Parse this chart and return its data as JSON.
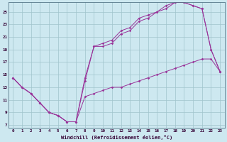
{
  "xlabel": "Windchill (Refroidissement éolien,°C)",
  "bg_color": "#cde8f0",
  "grid_color": "#a0c4cc",
  "line_color": "#993399",
  "xlim": [
    -0.5,
    23.5
  ],
  "ylim": [
    6.5,
    26.5
  ],
  "xticks": [
    0,
    1,
    2,
    3,
    4,
    5,
    6,
    7,
    8,
    9,
    10,
    11,
    12,
    13,
    14,
    15,
    16,
    17,
    18,
    19,
    20,
    21,
    22,
    23
  ],
  "yticks": [
    7,
    9,
    11,
    13,
    15,
    17,
    19,
    21,
    23,
    25
  ],
  "line1_x": [
    0,
    1,
    2,
    3,
    4,
    5,
    6,
    7,
    8,
    9,
    10,
    11,
    12,
    13,
    14,
    15,
    16,
    17,
    18,
    19,
    20,
    21,
    22,
    23
  ],
  "line1_y": [
    14.5,
    13.0,
    12.0,
    10.5,
    9.0,
    8.5,
    7.5,
    7.5,
    11.5,
    12.0,
    12.5,
    13.0,
    13.0,
    13.5,
    14.0,
    14.5,
    15.0,
    15.5,
    16.0,
    16.5,
    17.0,
    17.5,
    17.5,
    15.5
  ],
  "line2_x": [
    0,
    1,
    2,
    3,
    4,
    5,
    6,
    7,
    8,
    9,
    10,
    11,
    12,
    13,
    14,
    15,
    16,
    17,
    18,
    19,
    20,
    21,
    22,
    23
  ],
  "line2_y": [
    14.5,
    13.0,
    12.0,
    10.5,
    9.0,
    8.5,
    7.5,
    7.5,
    14.0,
    19.5,
    20.0,
    20.5,
    22.0,
    22.5,
    24.0,
    24.5,
    25.0,
    26.0,
    26.5,
    26.5,
    26.0,
    25.5,
    19.0,
    15.5
  ],
  "line3_x": [
    0,
    1,
    2,
    3,
    4,
    5,
    6,
    7,
    8,
    9,
    10,
    11,
    12,
    13,
    14,
    15,
    16,
    17,
    18,
    19,
    20,
    21,
    22,
    23
  ],
  "line3_y": [
    14.5,
    13.0,
    12.0,
    10.5,
    9.0,
    8.5,
    7.5,
    7.5,
    14.5,
    19.5,
    19.5,
    20.0,
    21.5,
    22.0,
    23.5,
    24.0,
    25.0,
    25.5,
    26.5,
    26.5,
    26.0,
    25.5,
    19.0,
    15.5
  ]
}
